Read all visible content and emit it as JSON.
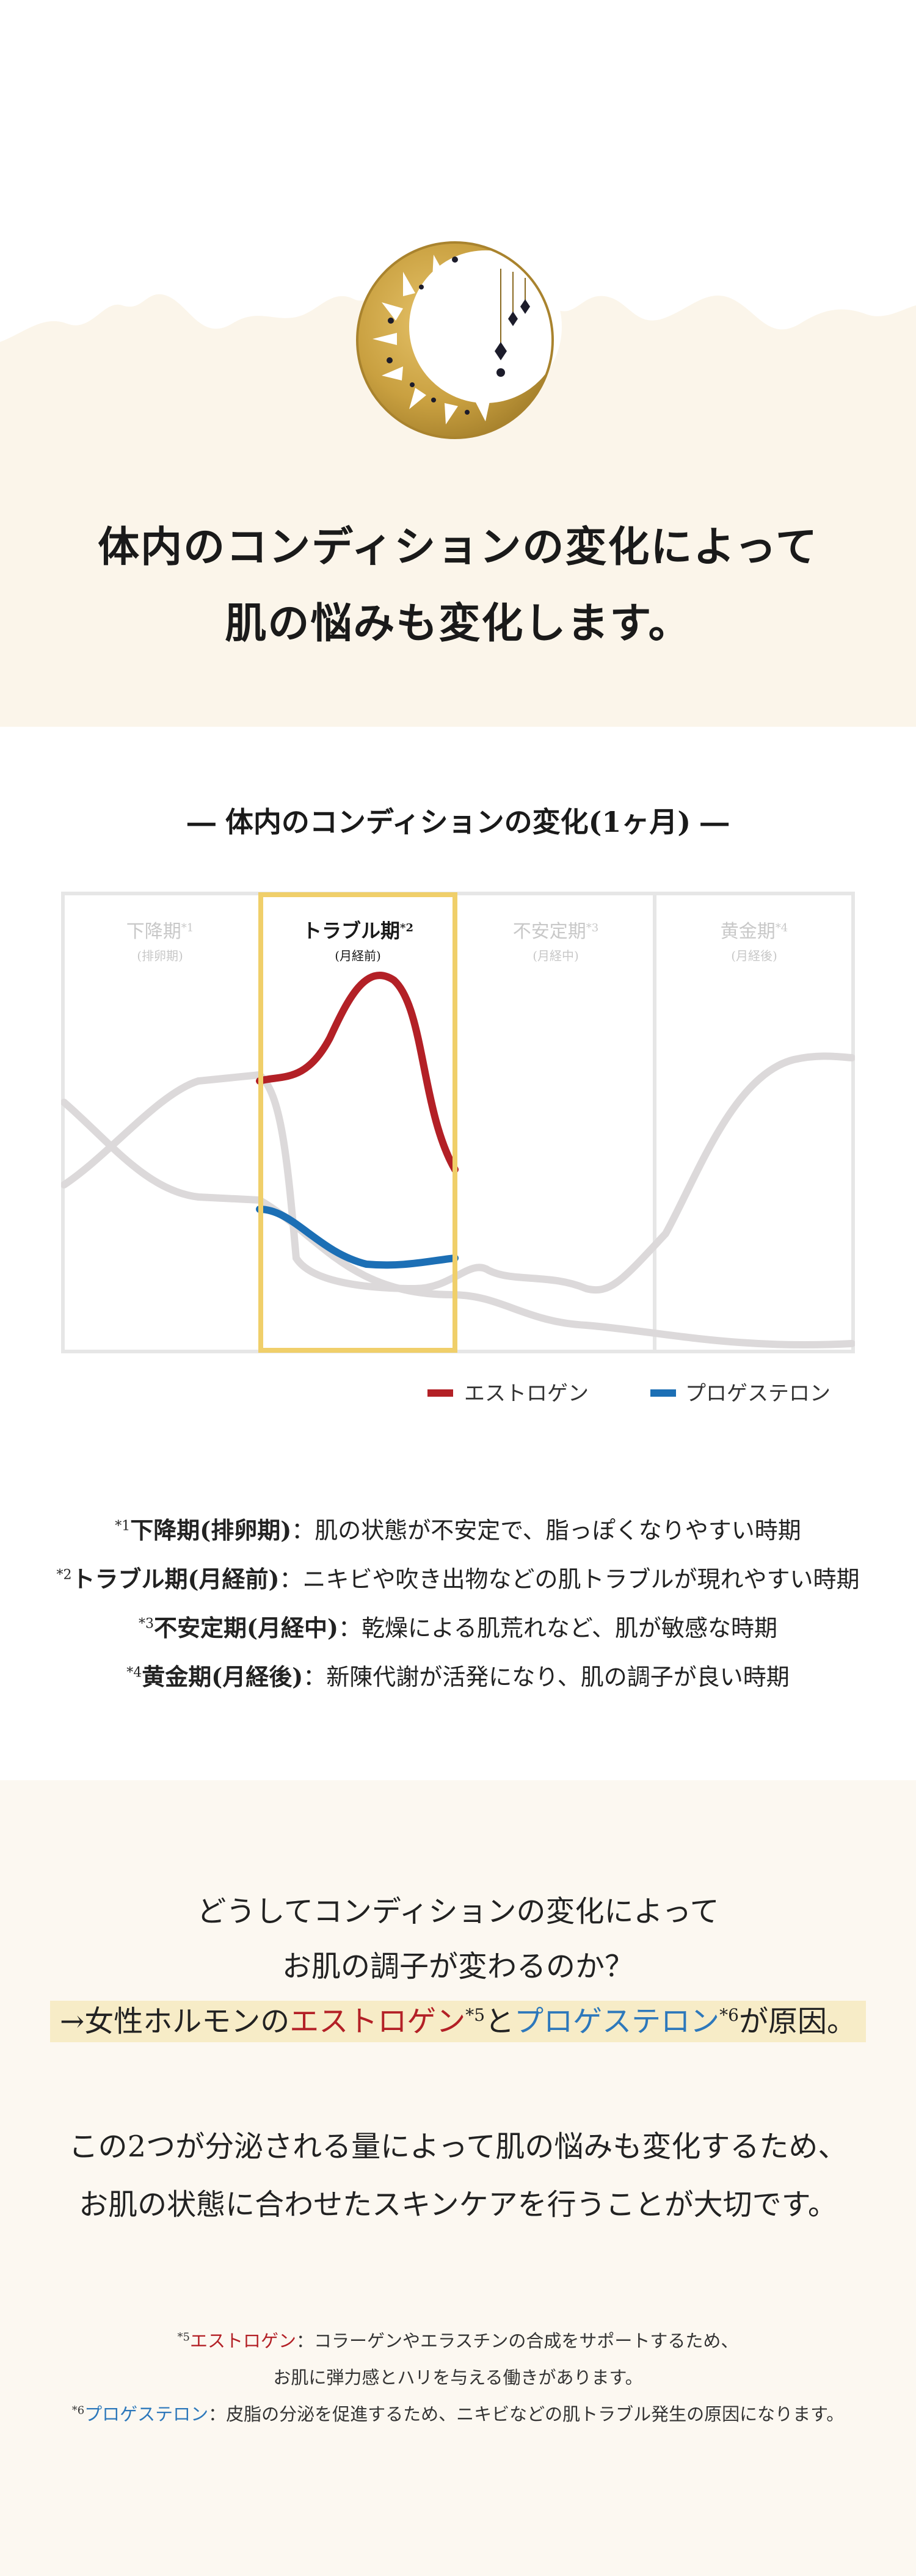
{
  "hero": {
    "line1": "体内のコンディションの変化によって",
    "line2": "肌の悩みも変化します。",
    "icon": "moon-sun-emblem-icon"
  },
  "chart": {
    "title": "― 体内のコンディションの変化(1ヶ月) ―",
    "periods": [
      {
        "name": "下降期",
        "mark": "*1",
        "sub": "(排卵期)",
        "active": false
      },
      {
        "name": "トラブル期",
        "mark": "*2",
        "sub": "(月経前)",
        "active": true
      },
      {
        "name": "不安定期",
        "mark": "*3",
        "sub": "(月経中)",
        "active": false
      },
      {
        "name": "黄金期",
        "mark": "*4",
        "sub": "(月経後)",
        "active": false
      }
    ],
    "legend": [
      {
        "label": "エストロゲン",
        "color": "#b32026"
      },
      {
        "label": "プロゲステロン",
        "color": "#1c6fb5"
      }
    ],
    "colors": {
      "highlight_border": "#f0cf6a",
      "grid": "#e6e6e6",
      "inactive_curve": "#dcd9da"
    }
  },
  "notes": [
    {
      "mark": "*1",
      "term": "下降期(排卵期)",
      "desc": "：肌の状態が不安定で、脂っぽくなりやすい時期"
    },
    {
      "mark": "*2",
      "term": "トラブル期(月経前)",
      "desc": "：ニキビや吹き出物などの肌トラブルが現れやすい時期"
    },
    {
      "mark": "*3",
      "term": "不安定期(月経中)",
      "desc": "：乾燥による肌荒れなど、肌が敏感な時期"
    },
    {
      "mark": "*4",
      "term": "黄金期(月経後)",
      "desc": "：新陳代謝が活発になり、肌の調子が良い時期"
    }
  ],
  "cause": {
    "q1": "どうしてコンディションの変化によって",
    "q2": "お肌の調子が変わるのか？",
    "a_prefix": "→女性ホルモンの",
    "a_estrogen": "エストロゲン",
    "a_mark5": "*5",
    "a_and": "と",
    "a_progesterone": "プロゲステロン",
    "a_mark6": "*6",
    "a_suffix": "が原因。",
    "p1": "この2つが分泌される量によって肌の悩みも変化するため、",
    "p2": "お肌の状態に合わせたスキンケアを行うことが大切です。"
  },
  "footnotes": {
    "f5_mark": "*5",
    "f5_term": "エストロゲン",
    "f5_desc1": "：コラーゲンやエラスチンの合成をサポートするため、",
    "f5_desc2": "お肌に弾力感とハリを与える働きがあります。",
    "f6_mark": "*6",
    "f6_term": "プロゲステロン",
    "f6_desc": "：皮脂の分泌を促進するため、ニキビなどの肌トラブル発生の原因になります。"
  }
}
